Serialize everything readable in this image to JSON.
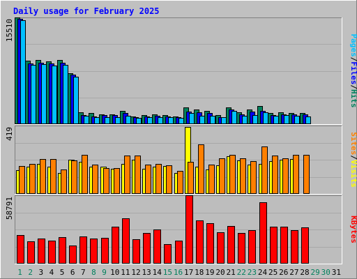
{
  "title": "Daily usage for February 2025",
  "colors": {
    "background": "#C0C0C0",
    "plot": "#BDBDBD",
    "gridline": "#A8A8A8",
    "title": "#0000FF",
    "hits": "#00805C",
    "files": "#0000FF",
    "pages": "#00C0FF",
    "visits": "#FFFF00",
    "sites": "#FF8000",
    "kbytes": "#FF0000",
    "bar_outline": "#000000",
    "day_weekday": "#000000",
    "day_weekend": "#00805C"
  },
  "chart_data": [
    {
      "type": "bar",
      "title": "Daily usage for February 2025",
      "panel": "hits-files-pages",
      "ylabel_parts": [
        "Pages",
        "/",
        "Files",
        "/",
        "Hits"
      ],
      "ymax_label": "15510",
      "ylim": [
        0,
        15510
      ],
      "categories": [
        "1",
        "2",
        "3",
        "4",
        "5",
        "6",
        "7",
        "8",
        "9",
        "10",
        "11",
        "12",
        "13",
        "14",
        "15",
        "16",
        "17",
        "18",
        "19",
        "20",
        "21",
        "22",
        "23",
        "24",
        "25",
        "26",
        "27",
        "28",
        "29",
        "30",
        "31"
      ],
      "series": [
        {
          "name": "Hits",
          "values": [
            15510,
            9200,
            9300,
            9100,
            9300,
            7400,
            1700,
            1600,
            1400,
            1400,
            1900,
            1100,
            1300,
            1400,
            1300,
            1100,
            2400,
            2100,
            1900,
            1300,
            2400,
            1700,
            2100,
            2600,
            1600,
            1700,
            1600,
            1600,
            null,
            null,
            null
          ]
        },
        {
          "name": "Files",
          "values": [
            15300,
            8800,
            8900,
            8800,
            8900,
            7200,
            1300,
            1100,
            1300,
            1300,
            1600,
            1000,
            1100,
            1200,
            1100,
            1000,
            1800,
            1700,
            1600,
            1000,
            2100,
            1400,
            1800,
            1900,
            1300,
            1400,
            1400,
            1400,
            null,
            null,
            null
          ]
        },
        {
          "name": "Pages",
          "values": [
            15100,
            8600,
            8700,
            8500,
            8600,
            6900,
            1200,
            1000,
            1000,
            1000,
            1200,
            900,
            1000,
            1000,
            1000,
            900,
            1600,
            1200,
            1200,
            1000,
            1900,
            1200,
            1300,
            1700,
            1200,
            1300,
            1200,
            1100,
            null,
            null,
            null
          ]
        }
      ]
    },
    {
      "type": "bar",
      "panel": "visits-sites",
      "ylabel_parts": [
        "Sites",
        "/",
        "Visits"
      ],
      "ymax_label": "419",
      "ylim": [
        0,
        419
      ],
      "categories": [
        "1",
        "2",
        "3",
        "4",
        "5",
        "6",
        "7",
        "8",
        "9",
        "10",
        "11",
        "12",
        "13",
        "14",
        "15",
        "16",
        "17",
        "18",
        "19",
        "20",
        "21",
        "22",
        "23",
        "24",
        "25",
        "26",
        "27",
        "28",
        "29",
        "30",
        "31"
      ],
      "series": [
        {
          "name": "Visits",
          "values": [
            145,
            165,
            182,
            165,
            130,
            210,
            195,
            165,
            165,
            155,
            185,
            210,
            155,
            165,
            170,
            130,
            410,
            165,
            150,
            175,
            230,
            205,
            180,
            185,
            200,
            210,
            215,
            0,
            null,
            null,
            null
          ]
        },
        {
          "name": "Sites",
          "values": [
            170,
            185,
            215,
            215,
            150,
            205,
            240,
            180,
            160,
            160,
            235,
            235,
            180,
            185,
            175,
            140,
            195,
            304,
            180,
            220,
            240,
            220,
            200,
            290,
            235,
            220,
            240,
            240,
            null,
            null,
            null
          ]
        }
      ]
    },
    {
      "type": "bar",
      "panel": "kbytes",
      "ylabel_parts": [
        "KBytes"
      ],
      "ymax_label": "58791",
      "ylim": [
        0,
        58791
      ],
      "categories": [
        "1",
        "2",
        "3",
        "4",
        "5",
        "6",
        "7",
        "8",
        "9",
        "10",
        "11",
        "12",
        "13",
        "14",
        "15",
        "16",
        "17",
        "18",
        "19",
        "20",
        "21",
        "22",
        "23",
        "24",
        "25",
        "26",
        "27",
        "28",
        "29",
        "30",
        "31"
      ],
      "series": [
        {
          "name": "KBytes",
          "values": [
            24800,
            19400,
            21800,
            19800,
            23000,
            15800,
            23400,
            21800,
            22200,
            32000,
            39000,
            20800,
            26200,
            29200,
            17000,
            19500,
            58791,
            37000,
            35000,
            26800,
            32500,
            26200,
            29000,
            53000,
            32000,
            31500,
            28500,
            31000,
            null,
            null,
            null
          ]
        }
      ]
    }
  ]
}
